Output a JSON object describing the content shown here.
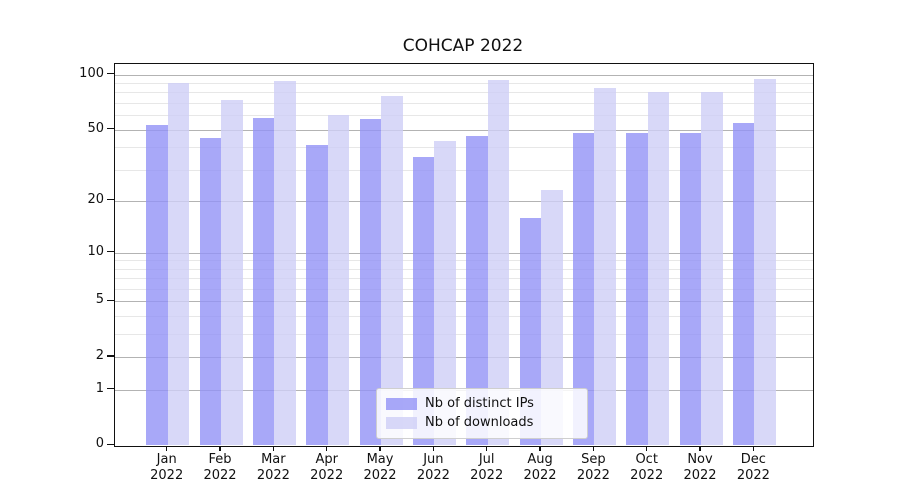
{
  "title": "COHCAP 2022",
  "legend": {
    "items": [
      {
        "label": "Nb of distinct IPs",
        "color": "rgba(146,146,246,0.8)"
      },
      {
        "label": "Nb of downloads",
        "color": "rgba(206,206,246,0.8)"
      }
    ]
  },
  "axes": {
    "y_tick_labels": [
      "100",
      "50",
      "20",
      "10",
      "5",
      "2",
      "1",
      "0"
    ],
    "x_year_line": "2022"
  },
  "colors": {
    "bar_distinct_ips": "rgba(146,146,246,0.8)",
    "bar_downloads": "rgba(206,206,246,0.8)",
    "grid_major": "#b3b3b3",
    "grid_minor": "#e7e7e7",
    "spine": "#111111"
  },
  "chart_data": {
    "type": "bar",
    "title": "COHCAP 2022",
    "categories": [
      "Jan",
      "Feb",
      "Mar",
      "Apr",
      "May",
      "Jun",
      "Jul",
      "Aug",
      "Sep",
      "Oct",
      "Nov",
      "Dec"
    ],
    "x_tick_second_line": "2022",
    "series": [
      {
        "name": "Nb of distinct IPs",
        "values": [
          53,
          45,
          58,
          41,
          57,
          35,
          46,
          16,
          48,
          48,
          48,
          54
        ]
      },
      {
        "name": "Nb of downloads",
        "values": [
          90,
          73,
          92,
          60,
          76,
          43,
          93,
          23,
          85,
          80,
          80,
          95
        ]
      }
    ],
    "yscale": "log1p",
    "y_ticks_major": [
      0,
      1,
      2,
      5,
      10,
      20,
      50,
      100
    ],
    "y_gridlines_minor": [
      3,
      4,
      6,
      7,
      8,
      9,
      30,
      40,
      60,
      70,
      80,
      90
    ],
    "ylim": [
      0,
      110
    ],
    "grid": true,
    "legend_position": "lower center"
  }
}
